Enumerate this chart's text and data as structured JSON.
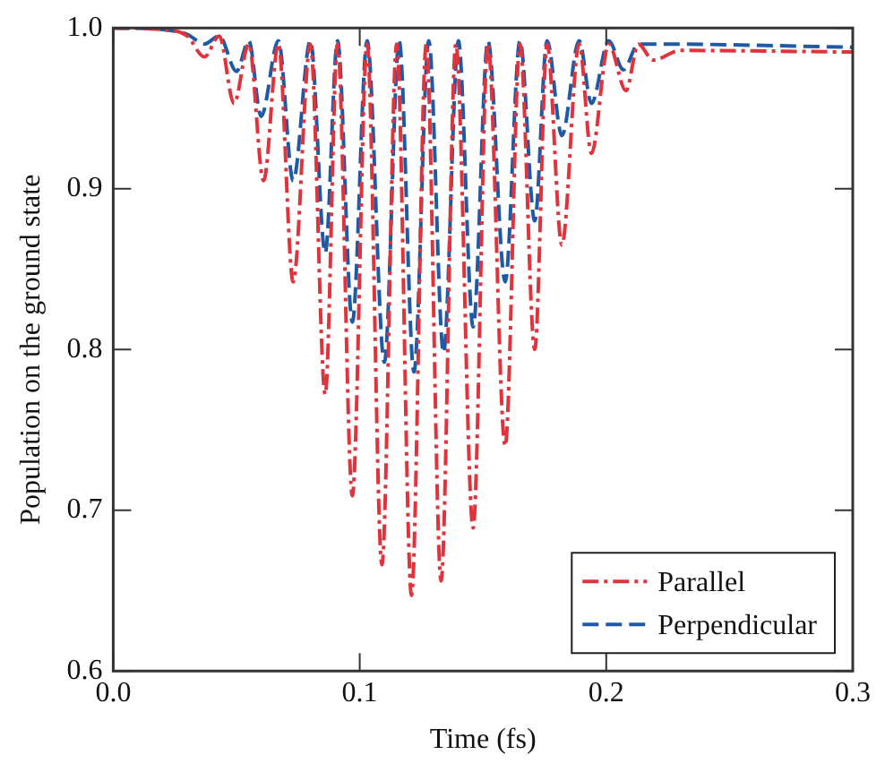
{
  "chart_data": {
    "type": "line",
    "xlabel": "Time (fs)",
    "ylabel": "Population on the ground state",
    "xlim": [
      0,
      0.3
    ],
    "ylim": [
      0.6,
      1.0
    ],
    "xticks": [
      {
        "value": 0,
        "label": "0.0"
      },
      {
        "value": 0.1,
        "label": "0.1"
      },
      {
        "value": 0.2,
        "label": "0.2"
      },
      {
        "value": 0.3,
        "label": "0.3"
      }
    ],
    "yticks": [
      {
        "value": 0.6,
        "label": "0.6"
      },
      {
        "value": 0.7,
        "label": "0.7"
      },
      {
        "value": 0.8,
        "label": "0.8"
      },
      {
        "value": 0.9,
        "label": "0.9"
      },
      {
        "value": 1.0,
        "label": "1.0"
      }
    ],
    "grid": false,
    "legend": "bottom right",
    "marker": "none",
    "series": [
      {
        "name": "Parallel",
        "color": "#e0333c",
        "line_style": "dashdot",
        "x": [
          0,
          0.02,
          0.03,
          0.037,
          0.043,
          0.049,
          0.055,
          0.061,
          0.067,
          0.073,
          0.08,
          0.086,
          0.091,
          0.097,
          0.103,
          0.109,
          0.115,
          0.121,
          0.127,
          0.133,
          0.139,
          0.146,
          0.152,
          0.159,
          0.165,
          0.171,
          0.176,
          0.182,
          0.189,
          0.194,
          0.201,
          0.208,
          0.213,
          0.219,
          0.23,
          0.3
        ],
        "values": [
          1.0,
          0.999,
          0.995,
          0.982,
          0.995,
          0.953,
          0.99,
          0.905,
          0.99,
          0.842,
          0.99,
          0.772,
          0.99,
          0.709,
          0.99,
          0.666,
          0.99,
          0.647,
          0.99,
          0.656,
          0.99,
          0.689,
          0.99,
          0.74,
          0.99,
          0.8,
          0.99,
          0.865,
          0.99,
          0.922,
          0.99,
          0.961,
          0.99,
          0.98,
          0.986,
          0.985
        ]
      },
      {
        "name": "Perpendicular",
        "color": "#1f5aa6",
        "line_style": "dashed",
        "x": [
          0,
          0.02,
          0.03,
          0.037,
          0.043,
          0.05,
          0.055,
          0.06,
          0.067,
          0.073,
          0.08,
          0.086,
          0.091,
          0.097,
          0.103,
          0.11,
          0.116,
          0.122,
          0.128,
          0.134,
          0.14,
          0.146,
          0.152,
          0.159,
          0.165,
          0.171,
          0.176,
          0.182,
          0.189,
          0.194,
          0.201,
          0.207,
          0.213,
          0.22,
          0.3
        ],
        "values": [
          1.0,
          0.999,
          0.996,
          0.99,
          0.995,
          0.973,
          0.992,
          0.945,
          0.992,
          0.905,
          0.992,
          0.86,
          0.992,
          0.817,
          0.992,
          0.792,
          0.992,
          0.786,
          0.992,
          0.798,
          0.992,
          0.814,
          0.992,
          0.842,
          0.992,
          0.88,
          0.992,
          0.933,
          0.992,
          0.953,
          0.992,
          0.974,
          0.99,
          0.99,
          0.988
        ]
      }
    ]
  }
}
